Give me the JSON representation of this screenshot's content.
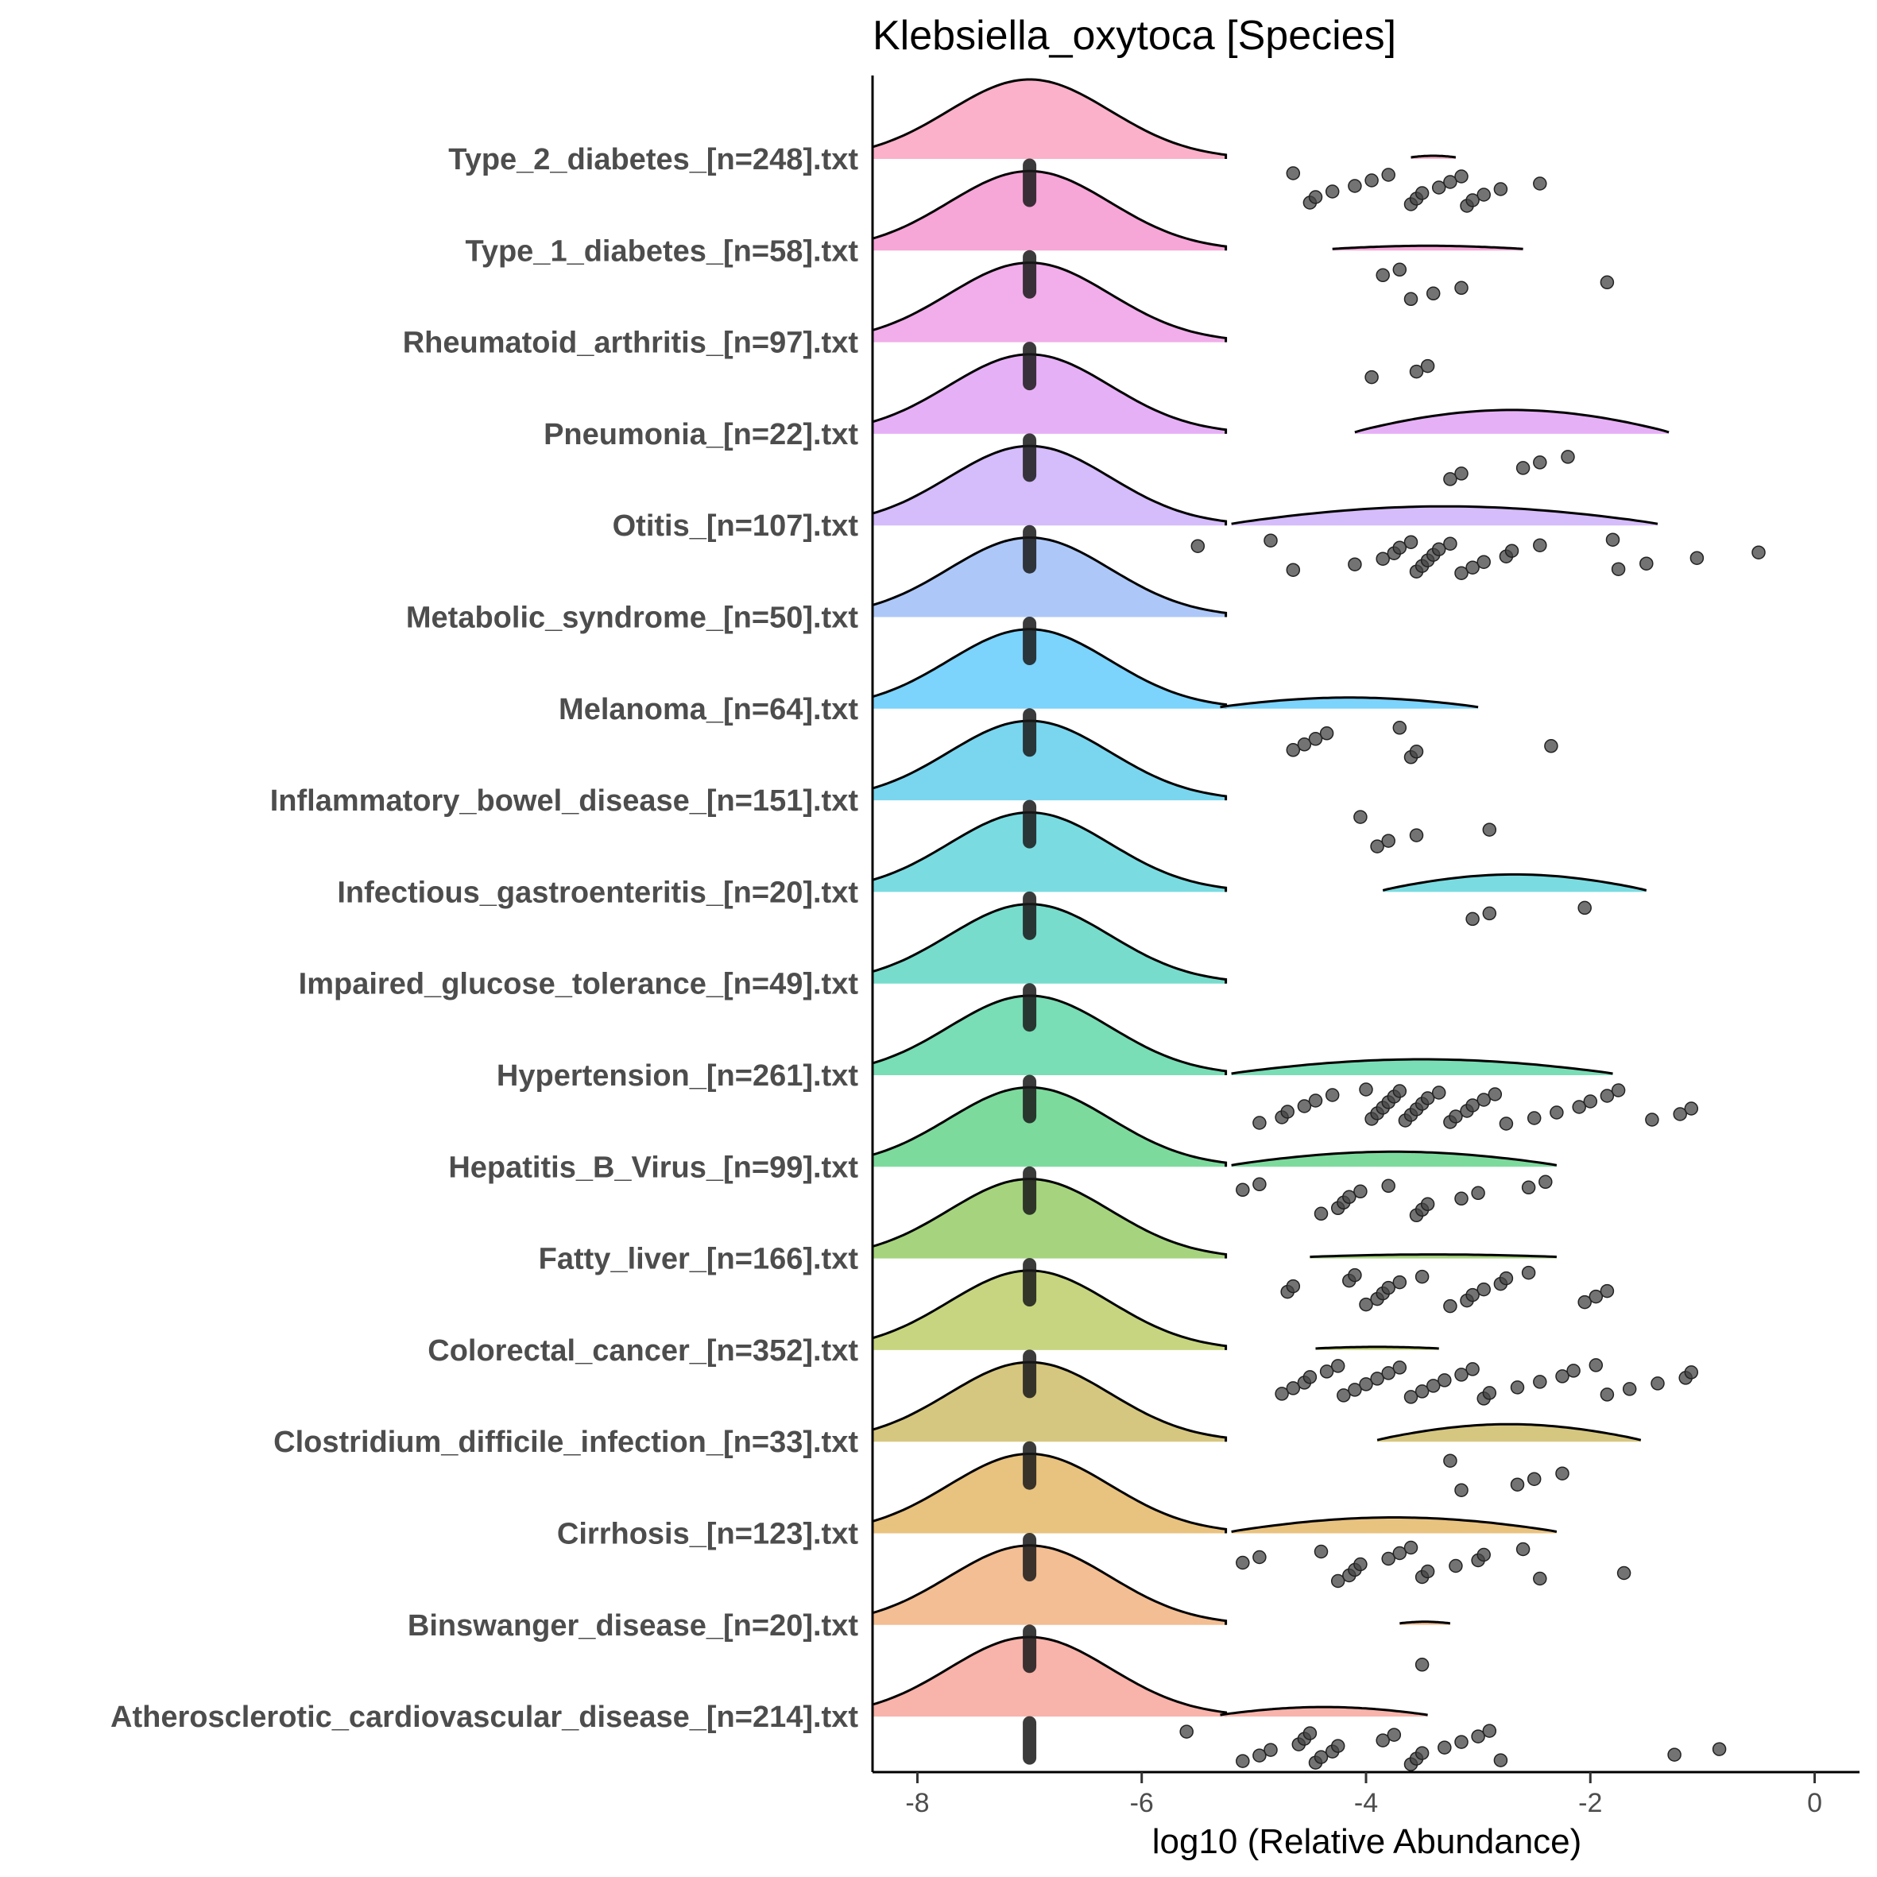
{
  "chart_data": {
    "type": "raincloud",
    "title": "Klebsiella_oxytoca [Species]",
    "xlabel": "log10 (Relative Abundance)",
    "ylabel": "",
    "xlim": [
      -8.4,
      0.4
    ],
    "xticks": [
      -8,
      -6,
      -4,
      -2,
      0
    ],
    "xtick_labels": [
      "-8",
      "-6",
      "-4",
      "-2",
      "0"
    ],
    "zero_fill_value": -7,
    "grid": false,
    "legend": "none",
    "series": [
      {
        "label": "Type_2_diabetes_[n=248].txt",
        "color": "#fbb1c9",
        "tail": [
          -3.6,
          -3.2
        ],
        "tail_peak": 0.02,
        "points": [
          -4.65,
          -4.5,
          -4.45,
          -4.3,
          -4.1,
          -3.95,
          -3.8,
          -3.6,
          -3.55,
          -3.5,
          -3.35,
          -3.25,
          -3.15,
          -3.1,
          -3.05,
          -2.95,
          -2.8,
          -2.45
        ]
      },
      {
        "label": "Type_1_diabetes_[n=58].txt",
        "color": "#f7a6d8",
        "tail": [
          -4.3,
          -2.6
        ],
        "tail_peak": 0.04,
        "points": [
          -3.85,
          -3.7,
          -3.6,
          -3.4,
          -3.15,
          -1.85
        ]
      },
      {
        "label": "Rheumatoid_arthritis_[n=97].txt",
        "color": "#f1aeea",
        "tail": null,
        "tail_peak": 0,
        "points": [
          -3.95,
          -3.55,
          -3.45
        ]
      },
      {
        "label": "Pneumonia_[n=22].txt",
        "color": "#e6b0f6",
        "tail": [
          -4.1,
          -1.3
        ],
        "tail_peak": 0.28,
        "points": [
          -3.25,
          -3.15,
          -2.6,
          -2.45,
          -2.2
        ]
      },
      {
        "label": "Otitis_[n=107].txt",
        "color": "#d5bcfa",
        "tail": [
          -5.2,
          -1.4
        ],
        "tail_peak": 0.22,
        "points": [
          -5.5,
          -4.85,
          -4.65,
          -4.1,
          -3.85,
          -3.75,
          -3.7,
          -3.6,
          -3.55,
          -3.5,
          -3.45,
          -3.4,
          -3.35,
          -3.25,
          -3.15,
          -3.05,
          -2.95,
          -2.75,
          -2.7,
          -2.45,
          -1.8,
          -1.75,
          -1.5,
          -1.05,
          -0.5
        ]
      },
      {
        "label": "Metabolic_syndrome_[n=50].txt",
        "color": "#adc8f8",
        "tail": null,
        "tail_peak": 0,
        "points": []
      },
      {
        "label": "Melanoma_[n=64].txt",
        "color": "#7cd3fb",
        "tail": [
          -5.3,
          -3.0
        ],
        "tail_peak": 0.12,
        "points": [
          -4.65,
          -4.55,
          -4.45,
          -4.35,
          -3.7,
          -3.6,
          -3.55,
          -2.35
        ]
      },
      {
        "label": "Inflammatory_bowel_disease_[n=151].txt",
        "color": "#7ad6ee",
        "tail": null,
        "tail_peak": 0,
        "points": [
          -4.05,
          -3.9,
          -3.8,
          -3.55,
          -2.9
        ]
      },
      {
        "label": "Infectious_gastroenteritis_[n=20].txt",
        "color": "#7adce1",
        "tail": [
          -3.85,
          -1.5
        ],
        "tail_peak": 0.2,
        "points": [
          -3.05,
          -2.9,
          -2.05
        ]
      },
      {
        "label": "Impaired_glucose_tolerance_[n=49].txt",
        "color": "#78dccc",
        "tail": null,
        "tail_peak": 0,
        "points": []
      },
      {
        "label": "Hypertension_[n=261].txt",
        "color": "#79ddb6",
        "tail": [
          -5.2,
          -1.8
        ],
        "tail_peak": 0.18,
        "points": [
          -4.95,
          -4.75,
          -4.7,
          -4.55,
          -4.45,
          -4.3,
          -4.0,
          -3.95,
          -3.9,
          -3.85,
          -3.8,
          -3.75,
          -3.7,
          -3.65,
          -3.6,
          -3.55,
          -3.5,
          -3.45,
          -3.35,
          -3.25,
          -3.2,
          -3.1,
          -3.05,
          -2.95,
          -2.85,
          -2.75,
          -2.5,
          -2.3,
          -2.1,
          -2.0,
          -1.85,
          -1.75,
          -1.45,
          -1.2,
          -1.1
        ]
      },
      {
        "label": "Hepatitis_B_Virus_[n=99].txt",
        "color": "#7dda9d",
        "tail": [
          -5.2,
          -2.3
        ],
        "tail_peak": 0.17,
        "points": [
          -5.1,
          -4.95,
          -4.4,
          -4.25,
          -4.2,
          -4.15,
          -4.05,
          -3.8,
          -3.55,
          -3.5,
          -3.45,
          -3.15,
          -3.0,
          -2.55,
          -2.4
        ]
      },
      {
        "label": "Fatty_liver_[n=166].txt",
        "color": "#a6d47e",
        "tail": [
          -4.5,
          -2.3
        ],
        "tail_peak": 0.03,
        "points": [
          -4.7,
          -4.65,
          -4.15,
          -4.1,
          -4.0,
          -3.9,
          -3.85,
          -3.8,
          -3.7,
          -3.5,
          -3.25,
          -3.1,
          -3.05,
          -2.95,
          -2.8,
          -2.75,
          -2.55,
          -2.05,
          -1.95,
          -1.85
        ]
      },
      {
        "label": "Colorectal_cancer_[n=352].txt",
        "color": "#c8d580",
        "tail": [
          -4.45,
          -3.35
        ],
        "tail_peak": 0.02,
        "points": [
          -4.75,
          -4.65,
          -4.55,
          -4.5,
          -4.35,
          -4.25,
          -4.2,
          -4.1,
          -4.0,
          -3.9,
          -3.8,
          -3.7,
          -3.6,
          -3.5,
          -3.4,
          -3.3,
          -3.15,
          -3.05,
          -2.95,
          -2.9,
          -2.65,
          -2.45,
          -2.25,
          -2.15,
          -1.95,
          -1.85,
          -1.65,
          -1.4,
          -1.15,
          -1.1
        ]
      },
      {
        "label": "Clostridium_difficile_infection_[n=33].txt",
        "color": "#d6c780",
        "tail": [
          -3.9,
          -1.55
        ],
        "tail_peak": 0.2,
        "points": [
          -3.25,
          -3.15,
          -2.65,
          -2.5,
          -2.25
        ]
      },
      {
        "label": "Cirrhosis_[n=123].txt",
        "color": "#e8c27f",
        "tail": [
          -5.2,
          -2.3
        ],
        "tail_peak": 0.18,
        "points": [
          -5.1,
          -4.95,
          -4.4,
          -4.25,
          -4.15,
          -4.1,
          -4.05,
          -3.8,
          -3.7,
          -3.6,
          -3.5,
          -3.45,
          -3.2,
          -3.0,
          -2.95,
          -2.6,
          -2.45,
          -1.7
        ]
      },
      {
        "label": "Binswanger_disease_[n=20].txt",
        "color": "#f3be93",
        "tail": [
          -3.7,
          -3.25
        ],
        "tail_peak": 0.02,
        "points": [
          -3.5
        ]
      },
      {
        "label": "Atherosclerotic_cardiovascular_disease_[n=214].txt",
        "color": "#f8b3aa",
        "tail": [
          -5.3,
          -3.45
        ],
        "tail_peak": 0.1,
        "points": [
          -5.6,
          -5.1,
          -4.95,
          -4.85,
          -4.6,
          -4.55,
          -4.5,
          -4.45,
          -4.4,
          -4.3,
          -4.25,
          -3.85,
          -3.75,
          -3.6,
          -3.55,
          -3.5,
          -3.3,
          -3.15,
          -3.0,
          -2.9,
          -2.8,
          -1.25,
          -0.85
        ]
      }
    ]
  }
}
